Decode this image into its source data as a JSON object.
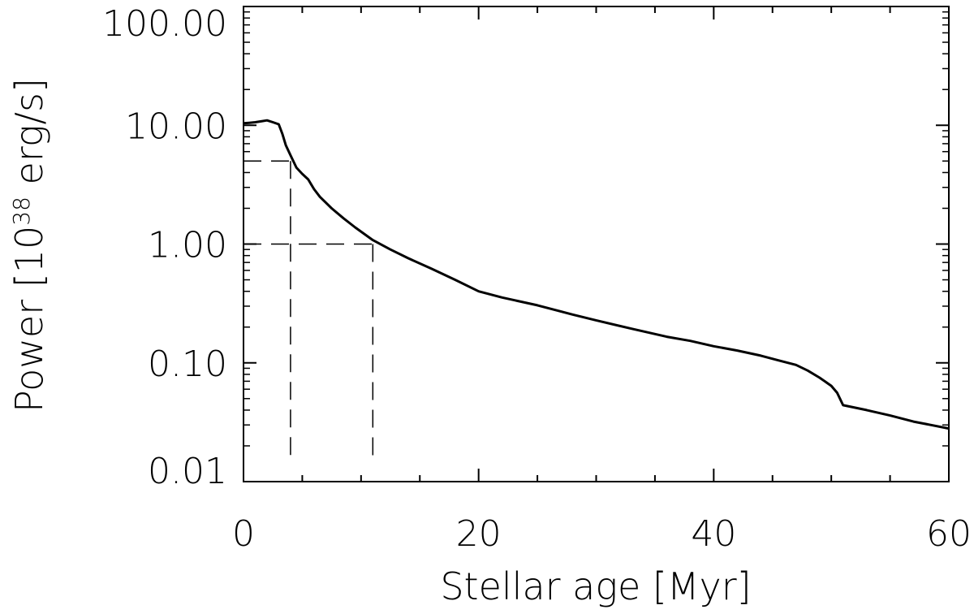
{
  "chart_data": {
    "type": "line",
    "xlabel": "Stellar age [Myr]",
    "ylabel": {
      "prefix": "Power [10",
      "exponent": "38",
      "suffix": " erg/s]"
    },
    "xlim": [
      0,
      60
    ],
    "ylim": [
      0.01,
      100
    ],
    "y_scale": "log",
    "x_ticks": [
      {
        "value": 0,
        "label": "0"
      },
      {
        "value": 20,
        "label": "20"
      },
      {
        "value": 40,
        "label": "40"
      },
      {
        "value": 60,
        "label": "60"
      }
    ],
    "y_ticks": [
      {
        "value": 0.01,
        "label": "0.01"
      },
      {
        "value": 0.1,
        "label": "0.10"
      },
      {
        "value": 1,
        "label": "1.00"
      },
      {
        "value": 10,
        "label": "10.00"
      },
      {
        "value": 100,
        "label": "100.00"
      }
    ],
    "grid": false,
    "series": [
      {
        "color": "#000000",
        "points": [
          [
            0,
            10.4
          ],
          [
            0.5,
            10.5
          ],
          [
            1.0,
            10.6
          ],
          [
            1.5,
            10.8
          ],
          [
            2.0,
            11.0
          ],
          [
            2.5,
            10.6
          ],
          [
            3.0,
            10.2
          ],
          [
            3.3,
            8.5
          ],
          [
            3.6,
            6.8
          ],
          [
            4.0,
            5.6
          ],
          [
            4.5,
            4.4
          ],
          [
            5.0,
            3.9
          ],
          [
            5.5,
            3.5
          ],
          [
            6.0,
            2.9
          ],
          [
            6.5,
            2.5
          ],
          [
            7.5,
            2.0
          ],
          [
            8.5,
            1.65
          ],
          [
            9.5,
            1.38
          ],
          [
            11.0,
            1.08
          ],
          [
            12.5,
            0.9
          ],
          [
            14.0,
            0.76
          ],
          [
            16.0,
            0.62
          ],
          [
            18.0,
            0.5
          ],
          [
            20.0,
            0.4
          ],
          [
            22.0,
            0.355
          ],
          [
            25.0,
            0.305
          ],
          [
            28.0,
            0.255
          ],
          [
            30.0,
            0.228
          ],
          [
            33.0,
            0.194
          ],
          [
            36.0,
            0.166
          ],
          [
            38.0,
            0.153
          ],
          [
            40.0,
            0.138
          ],
          [
            42.0,
            0.127
          ],
          [
            44.0,
            0.115
          ],
          [
            45.5,
            0.105
          ],
          [
            47.0,
            0.096
          ],
          [
            48.0,
            0.086
          ],
          [
            49.0,
            0.075
          ],
          [
            50.0,
            0.064
          ],
          [
            50.5,
            0.056
          ],
          [
            51.0,
            0.044
          ],
          [
            53.0,
            0.04
          ],
          [
            55.0,
            0.036
          ],
          [
            57.0,
            0.032
          ],
          [
            60.0,
            0.028
          ]
        ]
      }
    ],
    "annotations": [
      {
        "type": "hline",
        "color": "#000000",
        "dash": true,
        "y": 1,
        "x_from": 0,
        "x_to": 11
      },
      {
        "type": "vline",
        "color": "#000000",
        "dash": true,
        "x": 11,
        "y_from": 0.015,
        "y_to": 1
      },
      {
        "type": "hline",
        "color": "#000000",
        "dash": true,
        "y": 5,
        "x_from": 0,
        "x_to": 4
      },
      {
        "type": "vline",
        "color": "#000000",
        "dash": true,
        "x": 4,
        "y_from": 0.015,
        "y_to": 5
      }
    ]
  }
}
